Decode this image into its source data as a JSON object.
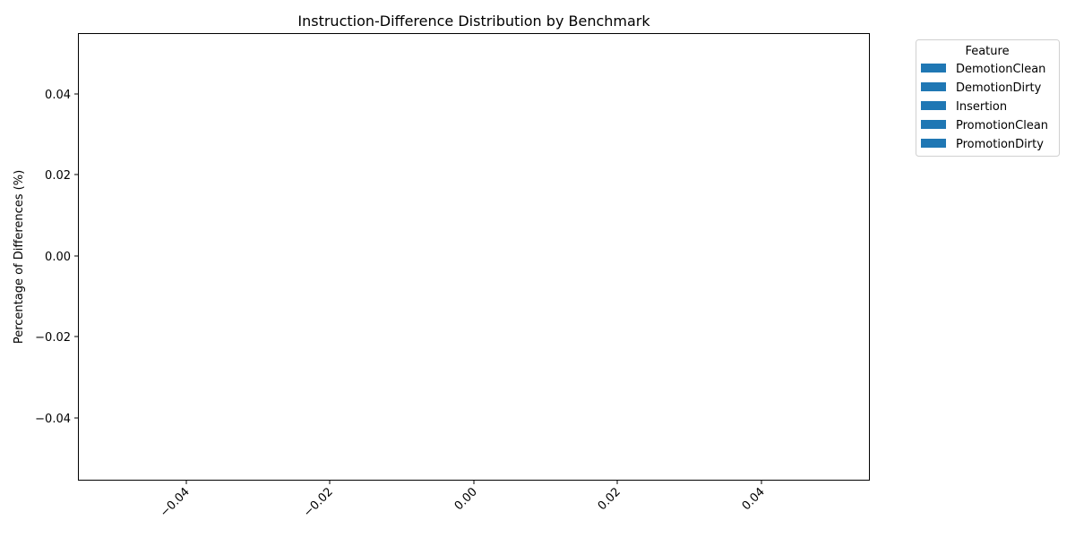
{
  "chart_data": {
    "type": "bar",
    "title": "Instruction-Difference Distribution by Benchmark",
    "xlabel": "",
    "ylabel": "Percentage of Differences (%)",
    "xlim": [
      -0.055,
      0.055
    ],
    "ylim": [
      -0.055,
      0.055
    ],
    "x_ticks": [
      "−0.04",
      "−0.02",
      "0.00",
      "0.02",
      "0.04"
    ],
    "y_ticks": [
      "0.04",
      "0.02",
      "0.00",
      "−0.02",
      "−0.04"
    ],
    "x_tick_values": [
      -0.04,
      -0.02,
      0.0,
      0.02,
      0.04
    ],
    "y_tick_values": [
      0.04,
      0.02,
      0.0,
      -0.02,
      -0.04
    ],
    "legend": {
      "title": "Feature",
      "placement": "outside-top-right",
      "entries": [
        "DemotionClean",
        "DemotionDirty",
        "Insertion",
        "PromotionClean",
        "PromotionDirty"
      ],
      "color": "#1f77b4"
    },
    "categories": [],
    "series": []
  }
}
